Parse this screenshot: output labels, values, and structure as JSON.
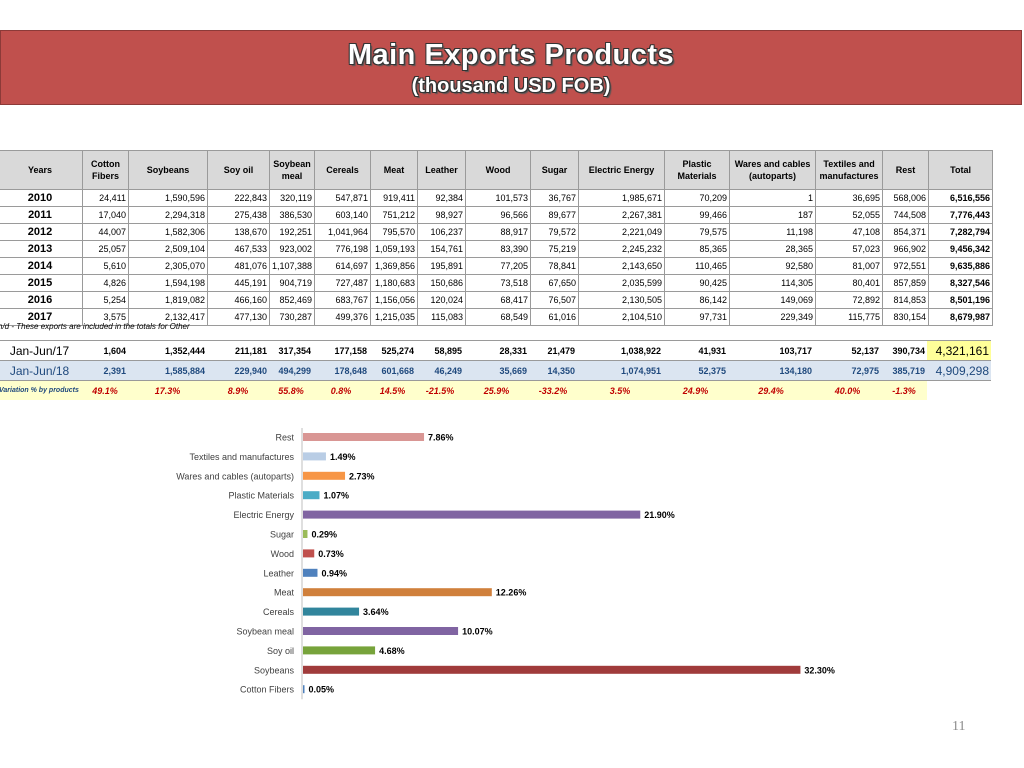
{
  "banner": {
    "title": "Main Exports Products",
    "subtitle": "(thousand USD FOB)"
  },
  "table": {
    "headers": [
      "Years",
      "Cotton Fibers",
      "Soybeans",
      "Soy oil",
      "Soybean meal",
      "Cereals",
      "Meat",
      "Leather",
      "Wood",
      "Sugar",
      "Electric Energy",
      "Plastic Materials",
      "Wares and cables (autoparts)",
      "Textiles and manufactures",
      "Rest",
      "Total"
    ],
    "rows": [
      [
        "2010",
        "24,411",
        "1,590,596",
        "222,843",
        "320,119",
        "547,871",
        "919,411",
        "92,384",
        "101,573",
        "36,767",
        "1,985,671",
        "70,209",
        "1",
        "36,695",
        "568,006",
        "6,516,556"
      ],
      [
        "2011",
        "17,040",
        "2,294,318",
        "275,438",
        "386,530",
        "603,140",
        "751,212",
        "98,927",
        "96,566",
        "89,677",
        "2,267,381",
        "99,466",
        "187",
        "52,055",
        "744,508",
        "7,776,443"
      ],
      [
        "2012",
        "44,007",
        "1,582,306",
        "138,670",
        "192,251",
        "1,041,964",
        "795,570",
        "106,237",
        "88,917",
        "79,572",
        "2,221,049",
        "79,575",
        "11,198",
        "47,108",
        "854,371",
        "7,282,794"
      ],
      [
        "2013",
        "25,057",
        "2,509,104",
        "467,533",
        "923,002",
        "776,198",
        "1,059,193",
        "154,761",
        "83,390",
        "75,219",
        "2,245,232",
        "85,365",
        "28,365",
        "57,023",
        "966,902",
        "9,456,342"
      ],
      [
        "2014",
        "5,610",
        "2,305,070",
        "481,076",
        "1,107,388",
        "614,697",
        "1,369,856",
        "195,891",
        "77,205",
        "78,841",
        "2,143,650",
        "110,465",
        "92,580",
        "81,007",
        "972,551",
        "9,635,886"
      ],
      [
        "2015",
        "4,826",
        "1,594,198",
        "445,191",
        "904,719",
        "727,487",
        "1,180,683",
        "150,686",
        "73,518",
        "67,650",
        "2,035,599",
        "90,425",
        "114,305",
        "80,401",
        "857,859",
        "8,327,546"
      ],
      [
        "2016",
        "5,254",
        "1,819,082",
        "466,160",
        "852,469",
        "683,767",
        "1,156,056",
        "120,024",
        "68,417",
        "76,507",
        "2,130,505",
        "86,142",
        "149,069",
        "72,892",
        "814,853",
        "8,501,196"
      ],
      [
        "2017",
        "3,575",
        "2,132,417",
        "477,130",
        "730,287",
        "499,376",
        "1,215,035",
        "115,083",
        "68,549",
        "61,016",
        "2,104,510",
        "97,731",
        "229,349",
        "115,775",
        "830,154",
        "8,679,987"
      ]
    ],
    "note": "n/d - These exports are included in the totals for Other",
    "half_rows": [
      [
        "Jan-Jun/17",
        "1,604",
        "1,352,444",
        "211,181",
        "317,354",
        "177,158",
        "525,274",
        "58,895",
        "28,331",
        "21,479",
        "1,038,922",
        "41,931",
        "103,717",
        "52,137",
        "390,734",
        "4,321,161"
      ],
      [
        "Jan-Jun/18",
        "2,391",
        "1,585,884",
        "229,940",
        "494,299",
        "178,648",
        "601,668",
        "46,249",
        "35,669",
        "14,350",
        "1,074,951",
        "52,375",
        "134,180",
        "72,975",
        "385,719",
        "4,909,298"
      ]
    ],
    "variation_label": "Variation % by products",
    "variation": [
      "49.1%",
      "17.3%",
      "8.9%",
      "55.8%",
      "0.8%",
      "14.5%",
      "-21.5%",
      "25.9%",
      "-33.2%",
      "3.5%",
      "24.9%",
      "29.4%",
      "40.0%",
      "-1.3%"
    ]
  },
  "colors": {
    "banner": "#c0504d",
    "header": "#d9d9d9",
    "jan18_row": "#dbe5f1",
    "variation_bg": "#ffffcc",
    "variation_text": "#c00000"
  },
  "chart_data": {
    "type": "bar",
    "orientation": "horizontal",
    "categories": [
      "Rest",
      "Textiles and  manufactures",
      "Wares and cables (autoparts)",
      "Plastic Materials",
      "Electric Energy",
      "Sugar",
      "Wood",
      "Leather",
      "Meat",
      "Cereals",
      "Soybean meal",
      "Soy oil",
      "Soybeans",
      "Cotton Fibers"
    ],
    "values": [
      7.86,
      1.49,
      2.73,
      1.07,
      21.9,
      0.29,
      0.73,
      0.94,
      12.26,
      3.64,
      10.07,
      4.68,
      32.3,
      0.05
    ],
    "labels": [
      "7.86%",
      "1.49%",
      "2.73%",
      "1.07%",
      "21.90%",
      "0.29%",
      "0.73%",
      "0.94%",
      "12.26%",
      "3.64%",
      "10.07%",
      "4.68%",
      "32.30%",
      "0.05%"
    ],
    "colors": [
      "#d99694",
      "#b9cde5",
      "#f79646",
      "#4bacc6",
      "#8064a2",
      "#9bbb59",
      "#c0504d",
      "#4f81bd",
      "#d0803c",
      "#31859c",
      "#8064a2",
      "#77a33b",
      "#a03b3b",
      "#4f81bd"
    ],
    "xlim": [
      0,
      35
    ],
    "grid": false,
    "legend": "none"
  },
  "page_number": "11"
}
